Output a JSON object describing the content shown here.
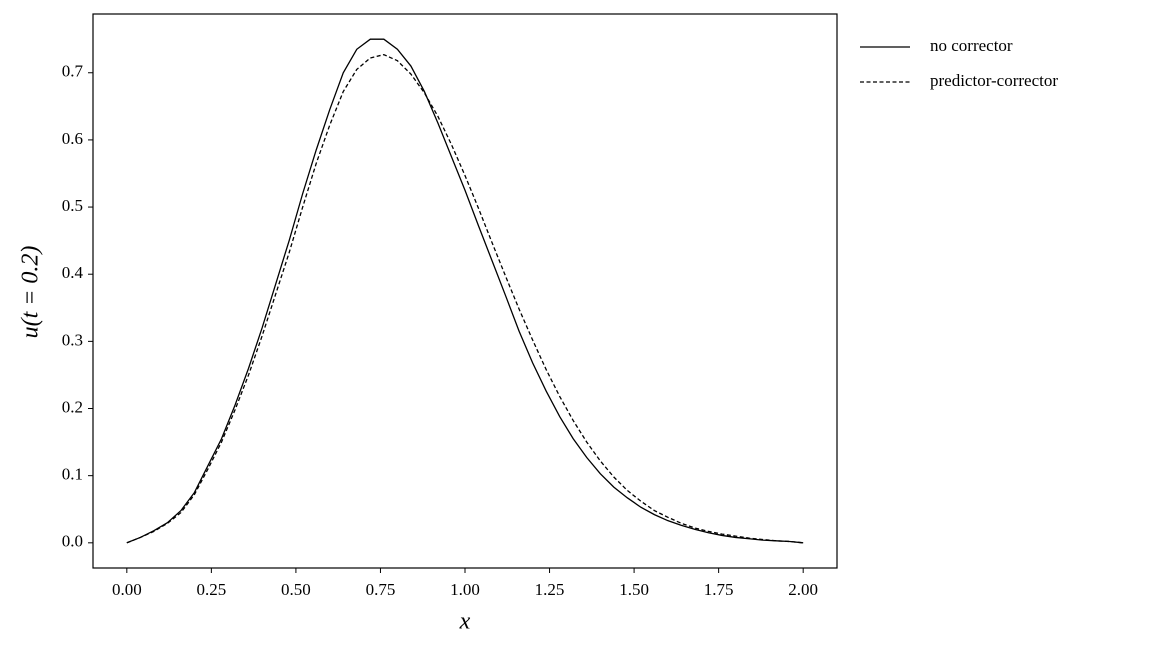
{
  "chart_data": {
    "type": "line",
    "xlabel": "x",
    "ylabel": "u(t = 0.2)",
    "x": [
      0,
      0.04,
      0.08,
      0.12,
      0.16,
      0.2,
      0.24,
      0.28,
      0.32,
      0.36,
      0.4,
      0.44,
      0.48,
      0.52,
      0.56,
      0.6,
      0.64,
      0.68,
      0.72,
      0.76,
      0.8,
      0.84,
      0.88,
      0.92,
      0.96,
      1.0,
      1.04,
      1.08,
      1.12,
      1.16,
      1.2,
      1.24,
      1.28,
      1.32,
      1.36,
      1.4,
      1.44,
      1.48,
      1.52,
      1.56,
      1.6,
      1.64,
      1.68,
      1.72,
      1.76,
      1.8,
      1.84,
      1.88,
      1.92,
      1.96,
      2.0
    ],
    "series": [
      {
        "name": "no corrector",
        "color": "#000000",
        "dash": "solid",
        "values": [
          0,
          0.008,
          0.018,
          0.03,
          0.048,
          0.075,
          0.115,
          0.155,
          0.205,
          0.26,
          0.32,
          0.385,
          0.45,
          0.52,
          0.585,
          0.645,
          0.7,
          0.735,
          0.75,
          0.75,
          0.735,
          0.71,
          0.672,
          0.625,
          0.575,
          0.525,
          0.472,
          0.42,
          0.368,
          0.315,
          0.268,
          0.226,
          0.188,
          0.155,
          0.127,
          0.103,
          0.083,
          0.067,
          0.053,
          0.042,
          0.033,
          0.026,
          0.02,
          0.015,
          0.011,
          0.008,
          0.006,
          0.004,
          0.003,
          0.002,
          0.0
        ]
      },
      {
        "name": "predictor-corrector",
        "color": "#000000",
        "dash": "dashed",
        "values": [
          0,
          0.008,
          0.017,
          0.029,
          0.045,
          0.072,
          0.11,
          0.15,
          0.198,
          0.25,
          0.308,
          0.37,
          0.432,
          0.5,
          0.565,
          0.622,
          0.672,
          0.705,
          0.722,
          0.727,
          0.718,
          0.698,
          0.67,
          0.635,
          0.593,
          0.547,
          0.498,
          0.447,
          0.397,
          0.348,
          0.302,
          0.258,
          0.218,
          0.182,
          0.15,
          0.122,
          0.098,
          0.078,
          0.062,
          0.048,
          0.038,
          0.029,
          0.022,
          0.017,
          0.013,
          0.01,
          0.007,
          0.005,
          0.003,
          0.002,
          0.0
        ]
      }
    ],
    "xlim": [
      -0.1,
      2.1
    ],
    "ylim": [
      -0.0375,
      0.7875
    ],
    "xticks": [
      {
        "value": 0,
        "label": "0.00"
      },
      0.25,
      {
        "value": 0.5,
        "label": "0.50"
      },
      0.75,
      {
        "value": 1,
        "label": "1.00"
      },
      1.25,
      {
        "value": 1.5,
        "label": "1.50"
      },
      1.75,
      {
        "value": 2,
        "label": "2.00"
      }
    ],
    "yticks": [
      {
        "value": 0,
        "label": "0.0"
      },
      0.1,
      0.2,
      0.3,
      0.4,
      0.5,
      0.6,
      0.7
    ],
    "grid": false,
    "legend": "outside upper right"
  }
}
